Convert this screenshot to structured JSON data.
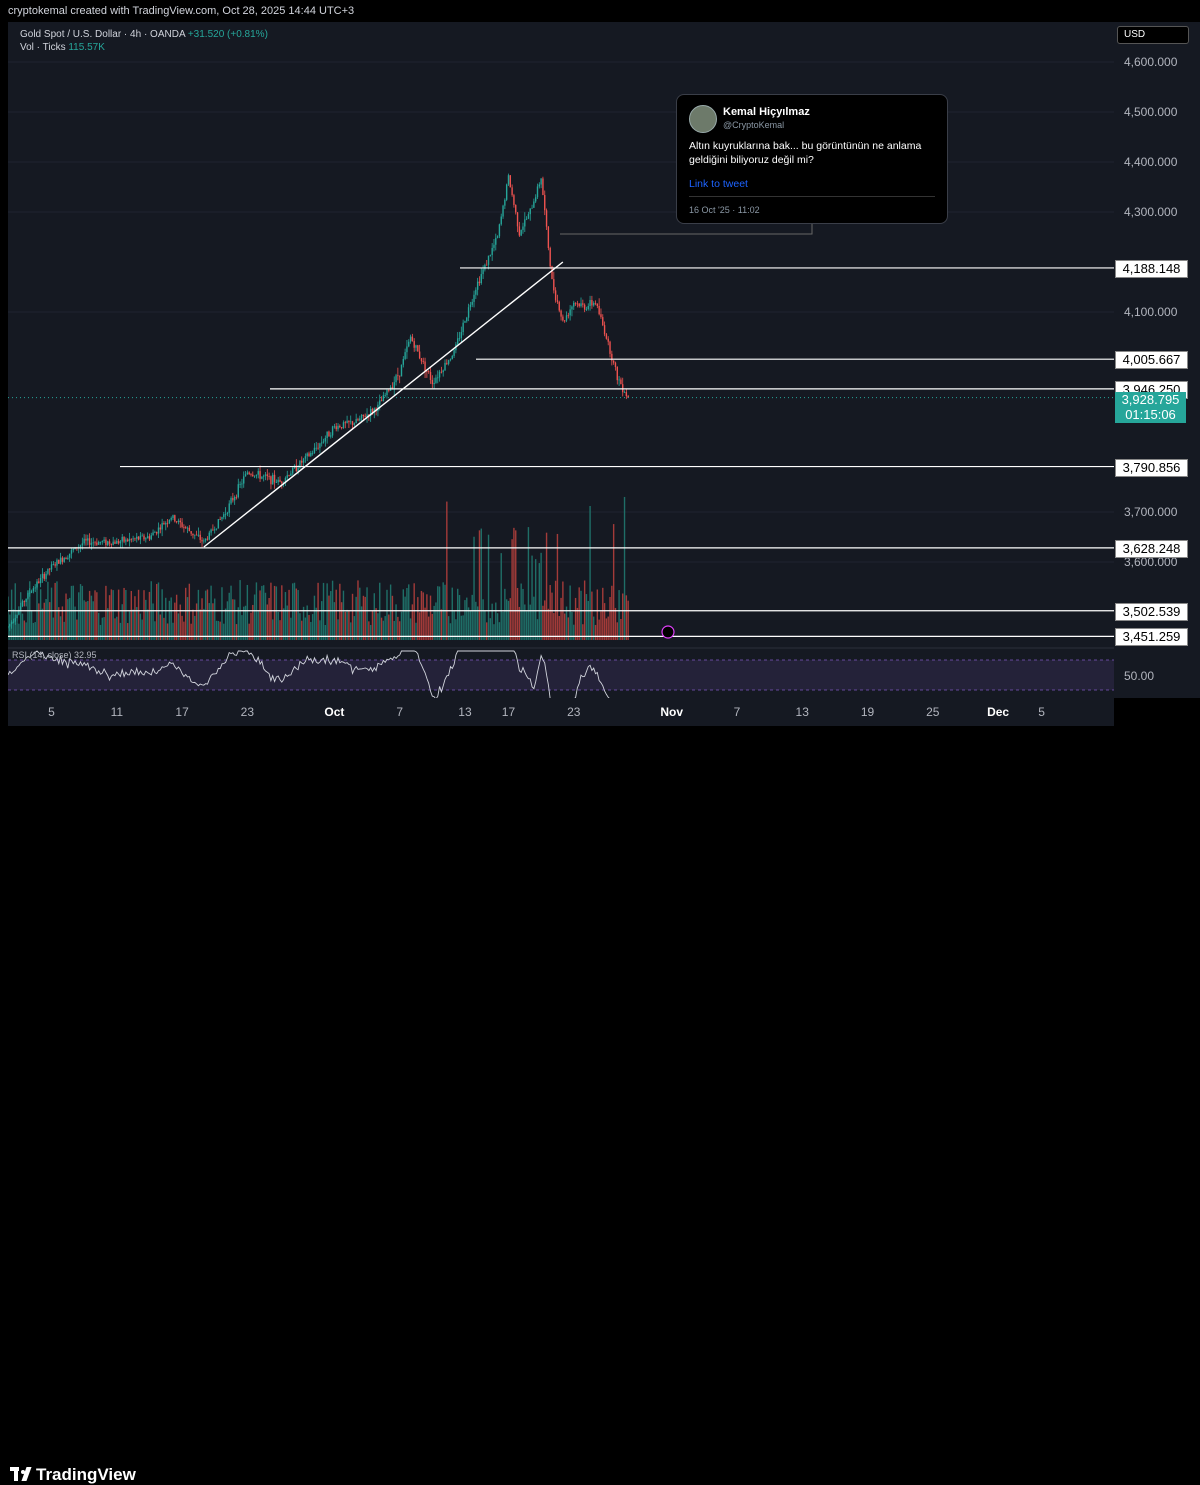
{
  "header": {
    "credit": "cryptokemal created with TradingView.com, Oct 28, 2025 14:44 UTC+3"
  },
  "legend": {
    "symbol": "Gold Spot / U.S. Dollar · 4h · OANDA",
    "change": "+31.520 (+0.81%)",
    "vol_label": "Vol · Ticks",
    "vol_value": "115.57K"
  },
  "currency_button": "USD",
  "tweet": {
    "name": "Kemal Hiçyılmaz",
    "handle": "@CryptoKemal",
    "text": "Altın kuyruklarına bak... bu görüntünün ne anlama geldiğini biliyoruz değil mi?",
    "link": "Link to tweet",
    "date": "16 Oct '25 · 11:02"
  },
  "last_price": {
    "value": "3,928.795",
    "countdown": "01:15:06"
  },
  "rsi": {
    "label": "RSI (14, close)",
    "value": "32.95",
    "axis_label": "50.00"
  },
  "footer": {
    "brand": "TradingView"
  },
  "colors": {
    "up": "#26a69a",
    "down": "#ef5350",
    "background": "#151922",
    "rsi_band": "#7e57c2"
  },
  "chart_data": {
    "type": "candlestick",
    "price_axis": {
      "labels": [
        "4,600.000",
        "4,500.000",
        "4,400.000",
        "4,300.000",
        "4,100.000",
        "3,700.000",
        "3,600.000"
      ],
      "values": [
        4600,
        4500,
        4400,
        4300,
        4100,
        3700,
        3600
      ],
      "range": [
        3450,
        4650
      ]
    },
    "time_axis": {
      "labels": [
        "5",
        "11",
        "17",
        "23",
        "Oct",
        "7",
        "13",
        "17",
        "23",
        "Nov",
        "7",
        "13",
        "19",
        "25",
        "Dec",
        "5"
      ]
    },
    "horizontal_levels": [
      {
        "label": "4,188.148",
        "value": 4188.148
      },
      {
        "label": "4,005.667",
        "value": 4005.667
      },
      {
        "label": "3,946.250",
        "value": 3946.25
      },
      {
        "label": "3,790.856",
        "value": 3790.856
      },
      {
        "label": "3,628.248",
        "value": 3628.248
      },
      {
        "label": "3,502.539",
        "value": 3502.539
      },
      {
        "label": "3,451.259",
        "value": 3451.259
      }
    ],
    "trendline": {
      "from": [
        "Sep 19",
        3630
      ],
      "to": [
        "Oct 22",
        4200
      ]
    },
    "ohlc_keypoints": [
      [
        "Sep 1",
        3470
      ],
      [
        "Sep 3",
        3540
      ],
      [
        "Sep 5",
        3590
      ],
      [
        "Sep 8",
        3640
      ],
      [
        "Sep 11",
        3640
      ],
      [
        "Sep 14",
        3650
      ],
      [
        "Sep 16",
        3690
      ],
      [
        "Sep 19",
        3640
      ],
      [
        "Sep 21",
        3700
      ],
      [
        "Sep 23",
        3780
      ],
      [
        "Sep 26",
        3760
      ],
      [
        "Sep 29",
        3820
      ],
      [
        "Oct 1",
        3870
      ],
      [
        "Oct 3",
        3880
      ],
      [
        "Oct 5",
        3910
      ],
      [
        "Oct 7",
        3980
      ],
      [
        "Oct 8",
        4050
      ],
      [
        "Oct 10",
        3960
      ],
      [
        "Oct 12",
        4020
      ],
      [
        "Oct 14",
        4150
      ],
      [
        "Oct 16",
        4250
      ],
      [
        "Oct 17",
        4370
      ],
      [
        "Oct 18",
        4260
      ],
      [
        "Oct 19",
        4300
      ],
      [
        "Oct 20",
        4370
      ],
      [
        "Oct 21",
        4160
      ],
      [
        "Oct 22",
        4080
      ],
      [
        "Oct 23",
        4120
      ],
      [
        "Oct 24",
        4110
      ],
      [
        "Oct 25",
        4120
      ],
      [
        "Oct 26",
        4050
      ],
      [
        "Oct 27",
        3970
      ],
      [
        "Oct 28",
        3928.795
      ]
    ]
  }
}
